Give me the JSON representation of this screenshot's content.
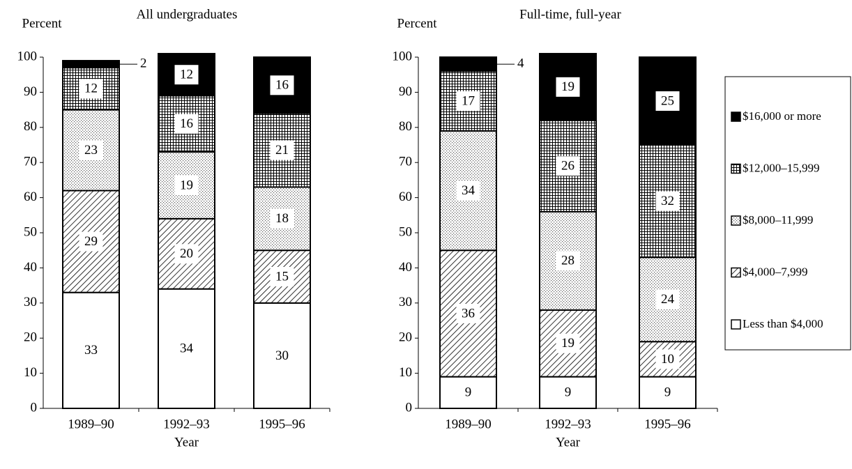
{
  "chart_data": [
    {
      "type": "bar",
      "stacked": true,
      "title": "All undergraduates",
      "y_label": "Percent",
      "x_label": "Year",
      "categories": [
        "1989–90",
        "1992–93",
        "1995–96"
      ],
      "ylim": [
        0,
        100
      ],
      "yticks": [
        0,
        10,
        20,
        30,
        40,
        50,
        60,
        70,
        80,
        90,
        100
      ],
      "series": [
        {
          "pattern": "none",
          "color": "#ffffff",
          "values": [
            33,
            34,
            30
          ]
        },
        {
          "pattern": "hatch",
          "color": "#000000",
          "values": [
            29,
            20,
            15
          ]
        },
        {
          "pattern": "dots",
          "color": "#000000",
          "values": [
            23,
            19,
            18
          ]
        },
        {
          "pattern": "grid",
          "color": "#000000",
          "values": [
            12,
            16,
            21
          ]
        },
        {
          "pattern": "solid",
          "color": "#000000",
          "values": [
            2,
            12,
            16
          ]
        }
      ]
    },
    {
      "type": "bar",
      "stacked": true,
      "title": "Full-time, full-year",
      "y_label": "Percent",
      "x_label": "Year",
      "categories": [
        "1989–90",
        "1992–93",
        "1995–96"
      ],
      "ylim": [
        0,
        100
      ],
      "yticks": [
        0,
        10,
        20,
        30,
        40,
        50,
        60,
        70,
        80,
        90,
        100
      ],
      "legend": "right",
      "series": [
        {
          "name": "Less than $4,000",
          "pattern": "none",
          "color": "#ffffff",
          "values": [
            9,
            9,
            9
          ]
        },
        {
          "name": "$4,000–7,999",
          "pattern": "hatch",
          "color": "#000000",
          "values": [
            36,
            19,
            10
          ]
        },
        {
          "name": "$8,000–11,999",
          "pattern": "dots",
          "color": "#000000",
          "values": [
            34,
            28,
            24
          ]
        },
        {
          "name": "$12,000–15,999",
          "pattern": "grid",
          "color": "#000000",
          "values": [
            17,
            26,
            32
          ]
        },
        {
          "name": "$16,000 or more",
          "pattern": "solid",
          "color": "#000000",
          "values": [
            4,
            19,
            25
          ]
        }
      ]
    }
  ]
}
